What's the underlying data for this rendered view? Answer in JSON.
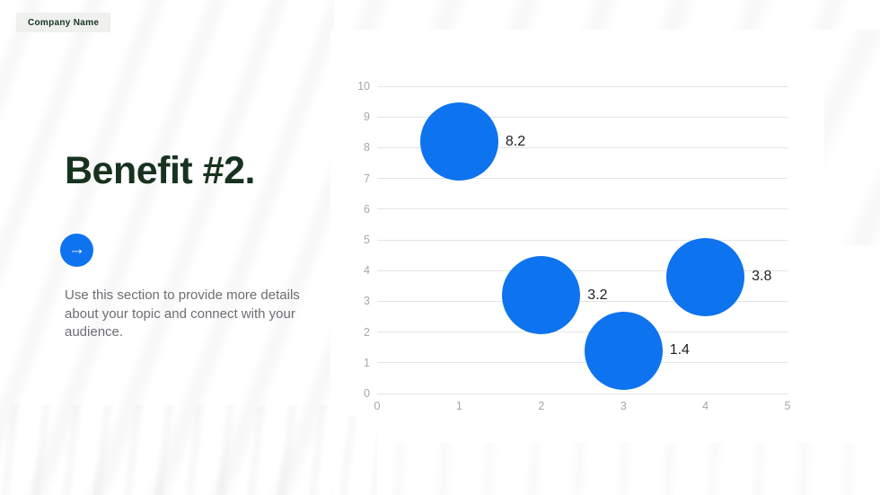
{
  "header": {
    "company_name": "Company Name"
  },
  "content": {
    "title": "Benefit #2.",
    "body": "Use this section to provide more details about your topic and connect with your audience.",
    "arrow_icon": "→"
  },
  "colors": {
    "accent_blue": "#0e73ee",
    "title_green": "#17331f",
    "body_gray": "#6d6d74",
    "axis_label_gray": "#a7a7af",
    "gridline_gray": "#e4e4e7",
    "value_label_dark": "#202124",
    "badge_background": "#f0f0ef"
  },
  "chart_data": {
    "type": "scatter",
    "subtype": "bubble",
    "title": "",
    "xlabel": "",
    "ylabel": "",
    "xlim": [
      0,
      5
    ],
    "ylim": [
      0,
      10
    ],
    "x_ticks": [
      0,
      1,
      2,
      3,
      4,
      5
    ],
    "y_ticks": [
      0,
      1,
      2,
      3,
      4,
      5,
      6,
      7,
      8,
      9,
      10
    ],
    "grid": "horizontal",
    "legend": "none",
    "bubble_color": "#0e73ee",
    "points": [
      {
        "x": 1,
        "y": 8.2,
        "label": "8.2"
      },
      {
        "x": 2,
        "y": 3.2,
        "label": "3.2"
      },
      {
        "x": 3,
        "y": 1.4,
        "label": "1.4"
      },
      {
        "x": 4,
        "y": 3.8,
        "label": "3.8"
      }
    ]
  }
}
